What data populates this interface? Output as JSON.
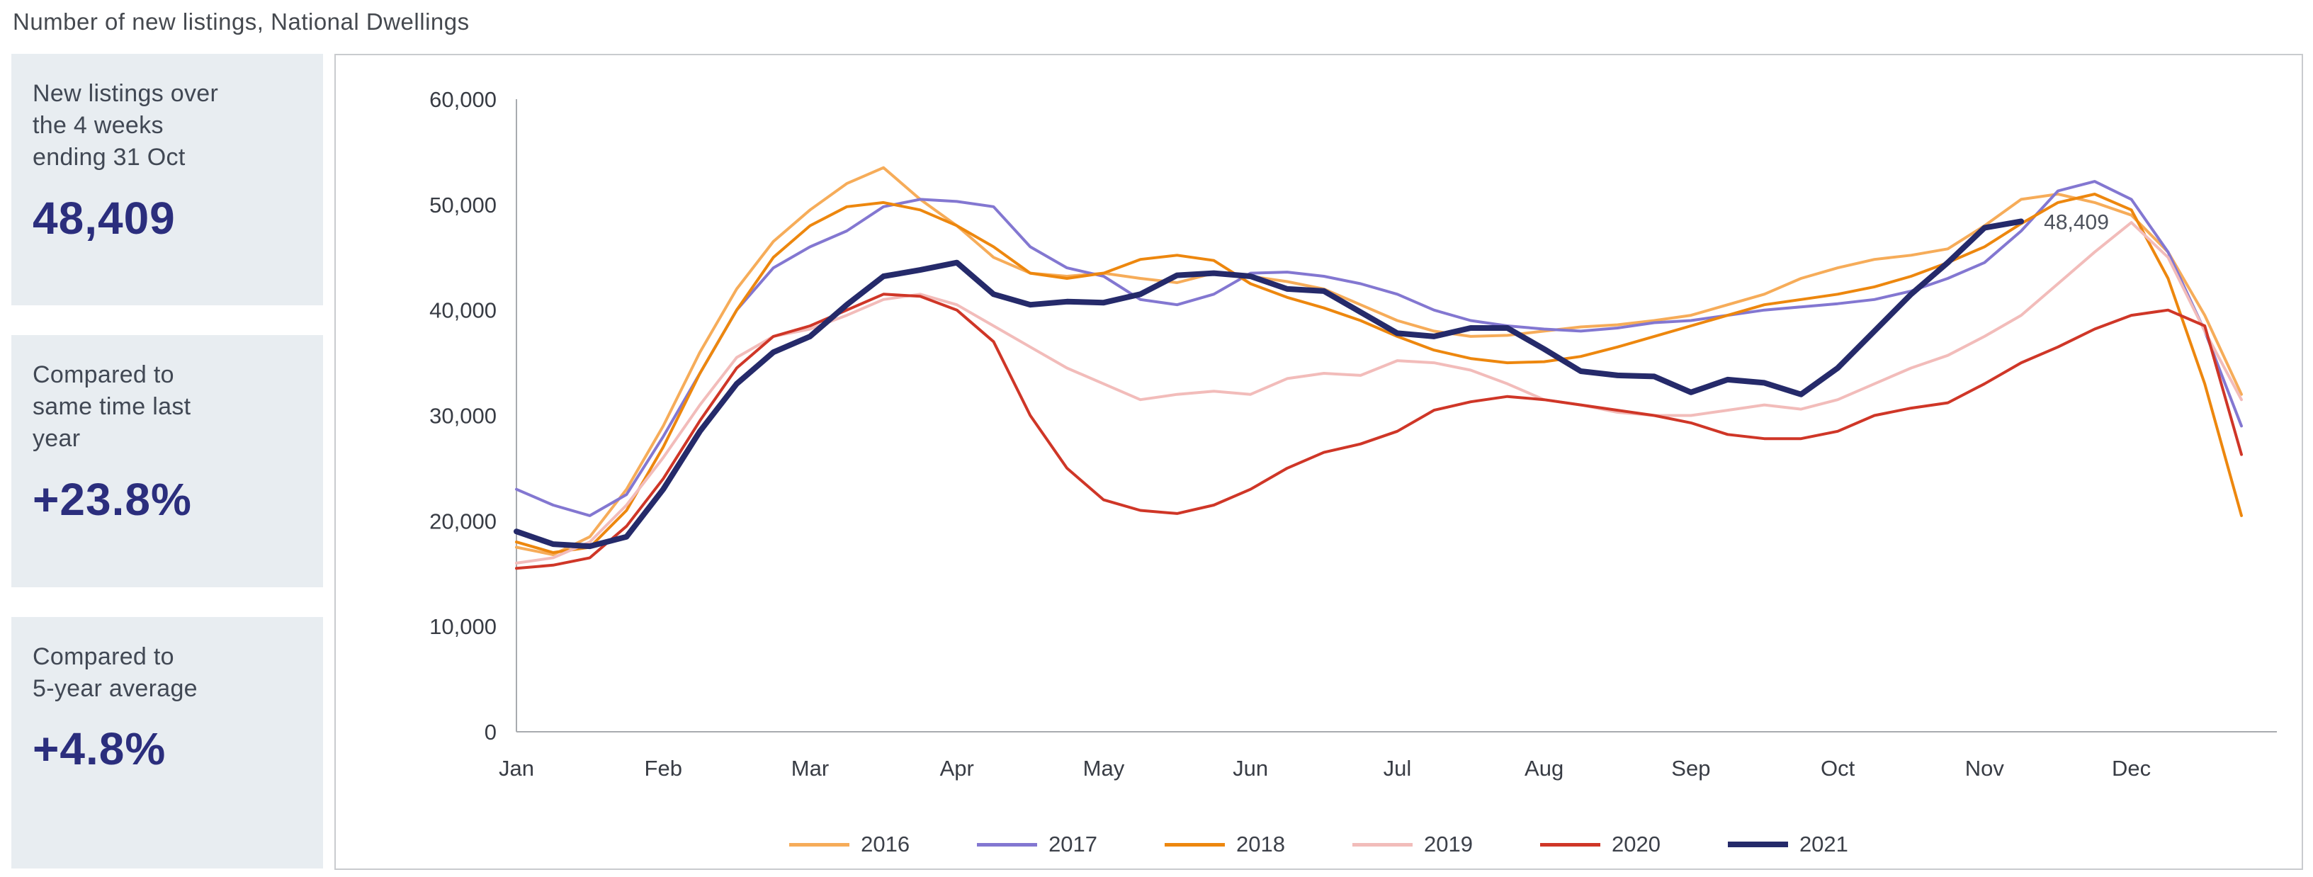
{
  "page": {
    "title": "Number of new listings, National Dwellings"
  },
  "cards": [
    {
      "label": "New listings over\nthe 4 weeks\nending 31 Oct",
      "value": "48,409"
    },
    {
      "label": "Compared to\nsame time last\nyear",
      "value": "+23.8%"
    },
    {
      "label": "Compared to\n5-year average",
      "value": "+4.8%"
    }
  ],
  "chart_data": {
    "type": "line",
    "title": "Number of new listings, National Dwellings",
    "xlabel": "",
    "ylabel": "",
    "grid": false,
    "legend_position": "bottom",
    "ylim": [
      0,
      60000
    ],
    "yticks": [
      0,
      10000,
      20000,
      30000,
      40000,
      50000,
      60000
    ],
    "ytick_labels": [
      "0",
      "10,000",
      "20,000",
      "30,000",
      "40,000",
      "50,000",
      "60,000"
    ],
    "categories": [
      "Jan",
      "Feb",
      "Mar",
      "Apr",
      "May",
      "Jun",
      "Jul",
      "Aug",
      "Sep",
      "Oct",
      "Nov",
      "Dec"
    ],
    "points_per_month": 4,
    "annotation": {
      "text": "48,409",
      "series": "2021",
      "at_value": 48409
    },
    "series": [
      {
        "name": "2016",
        "color": "#F6AC59",
        "width": 4,
        "values": [
          17500,
          16800,
          18500,
          23000,
          29000,
          36000,
          42000,
          46500,
          49500,
          52000,
          53500,
          50500,
          48000,
          45000,
          43500,
          43200,
          43500,
          43000,
          42600,
          43500,
          43200,
          42700,
          42000,
          40500,
          39000,
          38000,
          37500,
          37600,
          38000,
          38400,
          38600,
          39000,
          39500,
          40500,
          41500,
          43000,
          44000,
          44800,
          45200,
          45800,
          48000,
          50500,
          51000,
          50200,
          49000,
          45500,
          39500,
          32000
        ]
      },
      {
        "name": "2017",
        "color": "#8377D1",
        "width": 4,
        "values": [
          23000,
          21500,
          20500,
          22500,
          28000,
          34000,
          40000,
          44000,
          46000,
          47500,
          49800,
          50500,
          50300,
          49800,
          46000,
          44000,
          43200,
          41000,
          40500,
          41500,
          43500,
          43600,
          43200,
          42500,
          41500,
          40000,
          39000,
          38500,
          38200,
          38000,
          38300,
          38800,
          39000,
          39500,
          40000,
          40300,
          40600,
          41000,
          41800,
          43000,
          44500,
          47500,
          51300,
          52200,
          50500,
          45500,
          38000,
          29000
        ]
      },
      {
        "name": "2018",
        "color": "#ED870E",
        "width": 4,
        "values": [
          18000,
          17000,
          17500,
          21000,
          27000,
          34000,
          40000,
          45000,
          48000,
          49800,
          50200,
          49500,
          48000,
          46000,
          43500,
          43000,
          43500,
          44800,
          45200,
          44700,
          42500,
          41200,
          40200,
          39000,
          37500,
          36200,
          35400,
          35000,
          35100,
          35600,
          36500,
          37500,
          38500,
          39500,
          40500,
          41000,
          41500,
          42200,
          43200,
          44500,
          46000,
          48200,
          50200,
          51000,
          49500,
          43000,
          33000,
          20500
        ]
      },
      {
        "name": "2019",
        "color": "#F2BCBA",
        "width": 4,
        "values": [
          16000,
          16500,
          18000,
          21500,
          26000,
          31000,
          35500,
          37500,
          38200,
          39500,
          41000,
          41500,
          40500,
          38500,
          36500,
          34500,
          33000,
          31500,
          32000,
          32300,
          32000,
          33500,
          34000,
          33800,
          35200,
          35000,
          34300,
          33000,
          31500,
          31000,
          30300,
          30000,
          30000,
          30500,
          31000,
          30600,
          31500,
          33000,
          34500,
          35700,
          37500,
          39500,
          42500,
          45500,
          48300,
          45000,
          38000,
          31500
        ]
      },
      {
        "name": "2020",
        "color": "#CF3627",
        "width": 4,
        "values": [
          15500,
          15800,
          16500,
          19500,
          24000,
          29500,
          34500,
          37500,
          38500,
          40000,
          41500,
          41300,
          40000,
          37000,
          30000,
          25000,
          22000,
          21000,
          20700,
          21500,
          23000,
          25000,
          26500,
          27300,
          28500,
          30500,
          31300,
          31800,
          31500,
          31000,
          30500,
          30000,
          29300,
          28200,
          27800,
          27800,
          28500,
          30000,
          30700,
          31200,
          33000,
          35000,
          36500,
          38200,
          39500,
          40000,
          38500,
          26300
        ]
      },
      {
        "name": "2021",
        "color": "#252A6A",
        "width": 8,
        "values": [
          19000,
          17800,
          17600,
          18500,
          23000,
          28500,
          33000,
          36000,
          37500,
          40500,
          43200,
          43800,
          44500,
          41500,
          40500,
          40800,
          40700,
          41500,
          43300,
          43500,
          43200,
          42000,
          41800,
          39800,
          37800,
          37500,
          38300,
          38300,
          36300,
          34200,
          33800,
          33700,
          32200,
          33400,
          33100,
          32000,
          34500,
          38000,
          41500,
          44500,
          47800,
          48409
        ]
      }
    ]
  }
}
